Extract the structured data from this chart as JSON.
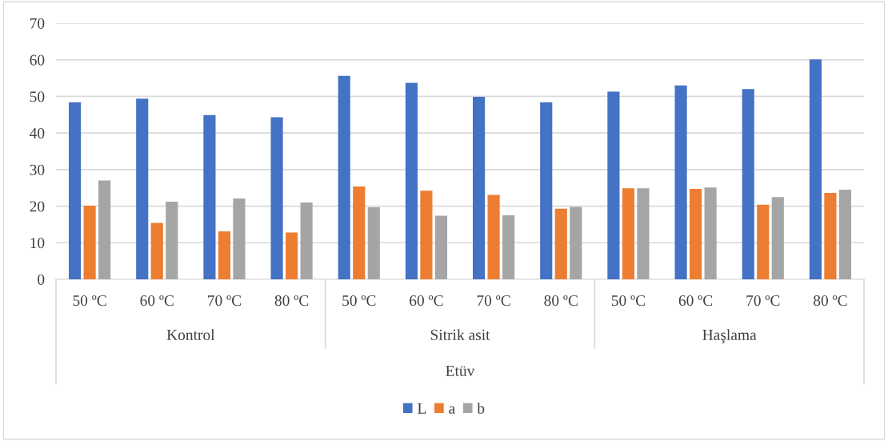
{
  "chart_data": {
    "type": "bar",
    "categories": [
      "50 ºC",
      "60 ºC",
      "70 ºC",
      "80 ºC",
      "50 ºC",
      "60 ºC",
      "70 ºC",
      "80 ºC",
      "50 ºC",
      "60 ºC",
      "70 ºC",
      "80 ºC"
    ],
    "xlabel": "Etüv",
    "annotations": [
      "Kontrol",
      "Sitrik asit",
      "Haşlama"
    ],
    "series": [
      {
        "name": "L",
        "color": "#4472c4",
        "values": [
          48.4,
          49.4,
          44.9,
          44.3,
          55.6,
          53.7,
          49.9,
          48.4,
          51.3,
          53.0,
          52.0,
          60.1
        ]
      },
      {
        "name": "a",
        "color": "#ed7d31",
        "values": [
          20.1,
          15.4,
          13.1,
          12.8,
          25.4,
          24.2,
          23.1,
          19.3,
          24.9,
          24.7,
          20.4,
          23.6
        ]
      },
      {
        "name": "b",
        "color": "#a5a5a5",
        "values": [
          27.0,
          21.2,
          22.1,
          21.0,
          19.7,
          17.4,
          17.5,
          19.8,
          24.9,
          25.1,
          22.5,
          24.5
        ]
      }
    ],
    "ylim": [
      0,
      70
    ],
    "yticks": [
      0,
      10,
      20,
      30,
      40,
      50,
      60,
      70
    ],
    "grid": "y",
    "legend": "bottom"
  }
}
